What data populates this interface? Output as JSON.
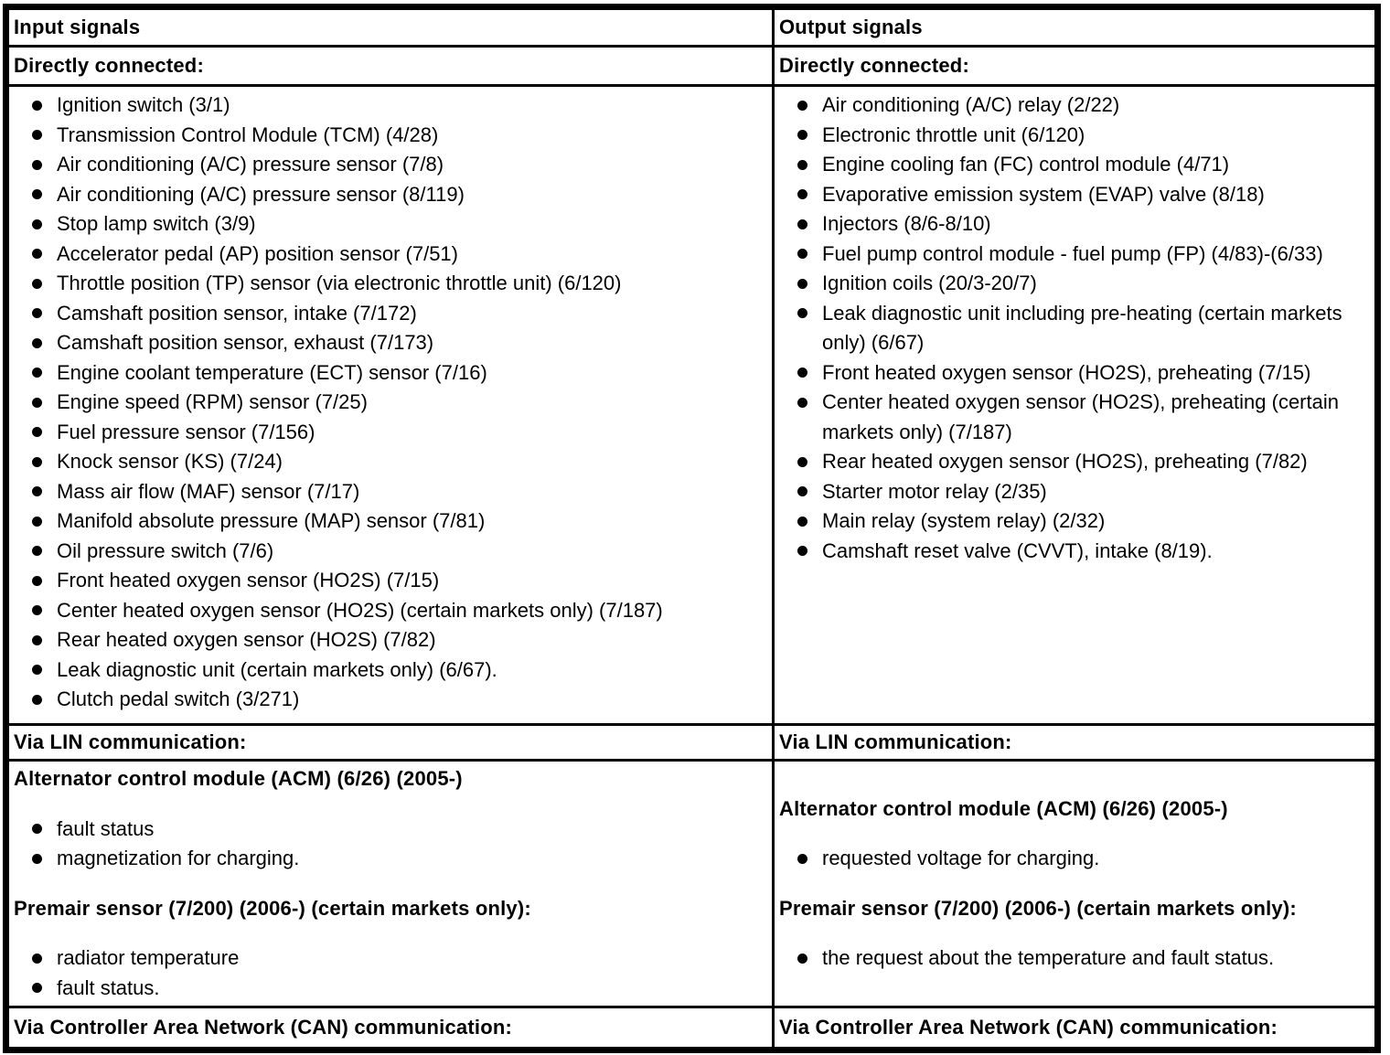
{
  "colors": {
    "border": "#000000",
    "background": "#ffffff",
    "text": "#000000"
  },
  "input": {
    "header": "Input signals",
    "directly_label": "Directly connected:",
    "directly_items": [
      "Ignition switch (3/1)",
      "Transmission Control Module (TCM) (4/28)",
      "Air conditioning (A/C) pressure sensor (7/8)",
      "Air conditioning (A/C) pressure sensor (8/119)",
      "Stop lamp switch (3/9)",
      "Accelerator pedal (AP) position sensor (7/51)",
      "Throttle position (TP) sensor (via electronic throttle unit) (6/120)",
      "Camshaft position sensor, intake (7/172)",
      "Camshaft position sensor, exhaust (7/173)",
      "Engine coolant temperature (ECT) sensor (7/16)",
      "Engine speed (RPM) sensor (7/25)",
      "Fuel pressure sensor (7/156)",
      "Knock sensor (KS) (7/24)",
      "Mass air flow (MAF) sensor (7/17)",
      "Manifold absolute pressure (MAP) sensor (7/81)",
      "Oil pressure switch (7/6)",
      "Front heated oxygen sensor (HO2S) (7/15)",
      "Center heated oxygen sensor (HO2S) (certain markets only) (7/187)",
      "Rear heated oxygen sensor (HO2S) (7/82)",
      "Leak diagnostic unit (certain markets only) (6/67).",
      "Clutch pedal switch (3/271)"
    ],
    "lin_label": "Via LIN communication:",
    "lin_groups": [
      {
        "heading": "Alternator control module (ACM) (6/26) (2005-)",
        "items": [
          "fault status",
          "magnetization for charging."
        ]
      },
      {
        "heading": "Premair sensor (7/200) (2006-) (certain markets only):",
        "items": [
          "radiator temperature",
          "fault status."
        ]
      }
    ],
    "can_label": "Via Controller Area Network (CAN) communication:"
  },
  "output": {
    "header": "Output signals",
    "directly_label": "Directly connected:",
    "directly_items": [
      "Air conditioning (A/C) relay (2/22)",
      "Electronic throttle unit (6/120)",
      "Engine cooling fan (FC) control module (4/71)",
      "Evaporative emission system (EVAP) valve (8/18)",
      "Injectors (8/6-8/10)",
      "Fuel pump control module - fuel pump (FP) (4/83)-(6/33)",
      "Ignition coils (20/3-20/7)",
      "Leak diagnostic unit including pre-heating (certain markets only) (6/67)",
      "Front heated oxygen sensor (HO2S), preheating (7/15)",
      "Center heated oxygen sensor (HO2S), preheating (certain markets only) (7/187)",
      "Rear heated oxygen sensor (HO2S), preheating (7/82)",
      "Starter motor relay (2/35)",
      "Main relay (system relay) (2/32)",
      "Camshaft reset valve (CVVT), intake (8/19)."
    ],
    "lin_label": "Via LIN communication:",
    "lin_groups": [
      {
        "heading": "Alternator control module (ACM) (6/26) (2005-)",
        "items": [
          "requested voltage for charging."
        ]
      },
      {
        "heading": "Premair sensor (7/200) (2006-) (certain markets only):",
        "items": [
          "the request about the temperature and fault status."
        ]
      }
    ],
    "can_label": "Via Controller Area Network (CAN) communication:"
  }
}
